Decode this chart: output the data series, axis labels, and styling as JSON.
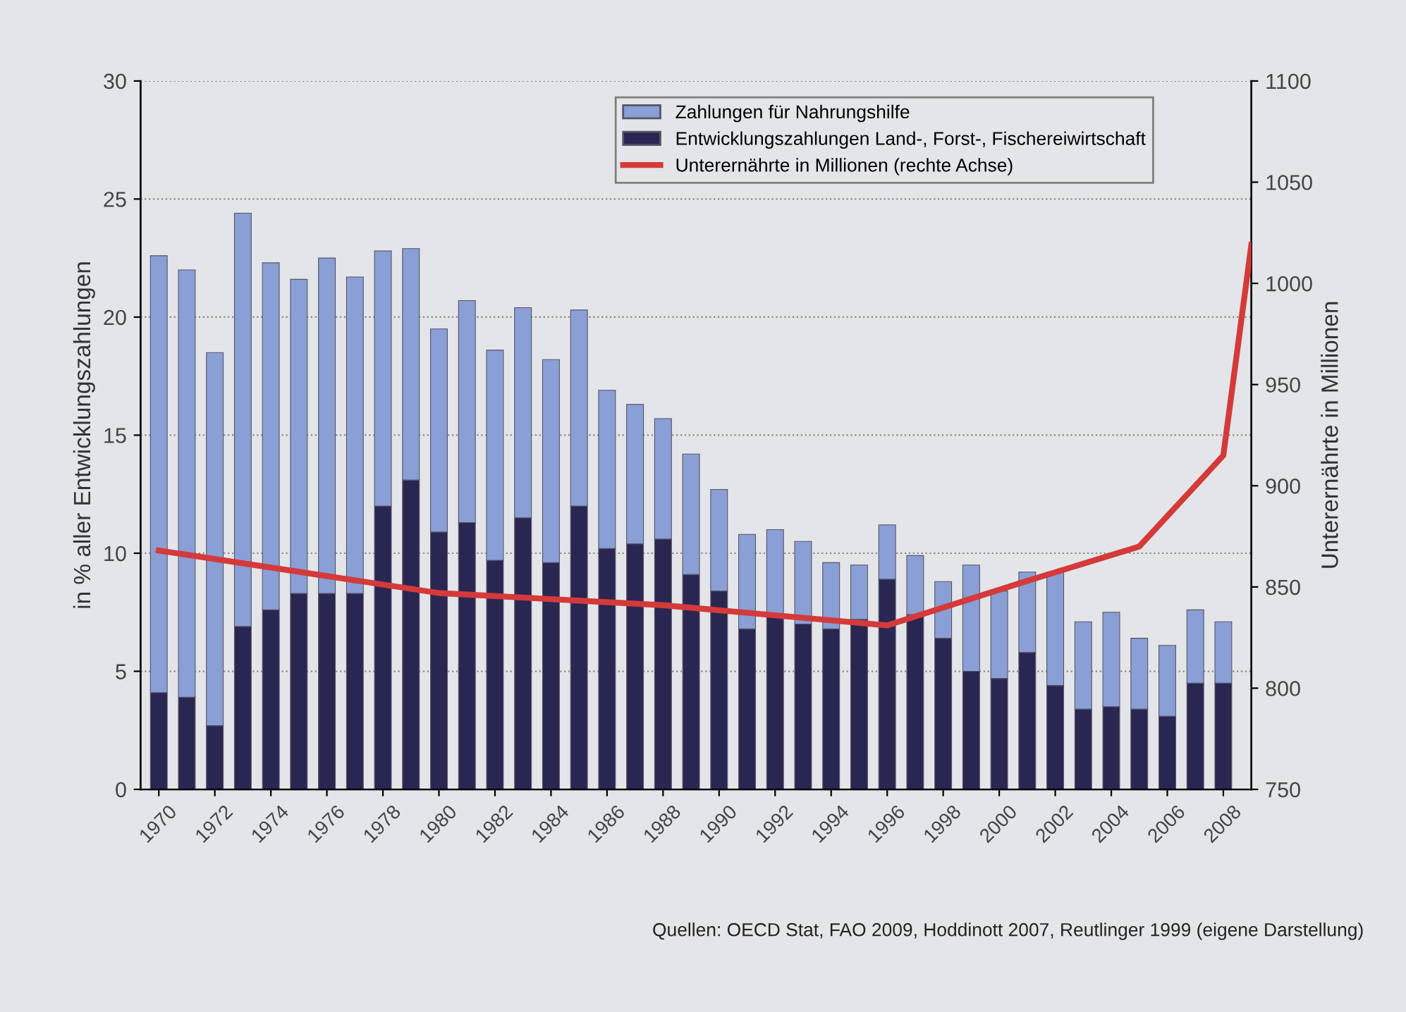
{
  "chart_data": {
    "type": "bar",
    "stacked": true,
    "x": [
      1970,
      1971,
      1972,
      1973,
      1974,
      1975,
      1976,
      1977,
      1978,
      1979,
      1980,
      1981,
      1982,
      1983,
      1984,
      1985,
      1986,
      1987,
      1988,
      1989,
      1990,
      1991,
      1992,
      1993,
      1994,
      1995,
      1996,
      1997,
      1998,
      1999,
      2000,
      2001,
      2002,
      2003,
      2004,
      2005,
      2006,
      2007,
      2008
    ],
    "ylabel": "in % aller Entwicklungszahlungen",
    "y2label": "Unterernährte in Millionen",
    "series": [
      {
        "name": "Entwicklungszahlungen Land-, Forst-, Fischereiwirtschaft",
        "color": "#2a2652",
        "values": [
          4.1,
          3.9,
          2.7,
          6.9,
          7.6,
          8.3,
          8.3,
          8.3,
          12.0,
          13.1,
          10.9,
          11.3,
          9.7,
          11.5,
          9.6,
          12.0,
          10.2,
          10.4,
          10.6,
          9.1,
          8.4,
          6.8,
          7.4,
          7.0,
          6.8,
          7.2,
          8.9,
          7.4,
          6.4,
          5.0,
          4.7,
          5.8,
          4.4,
          3.4,
          3.5,
          3.4,
          3.1,
          4.5,
          4.5
        ]
      },
      {
        "name": "Zahlungen für Nahrungshilfe",
        "color": "#8a9fd6",
        "values": [
          18.5,
          18.1,
          15.8,
          17.5,
          14.7,
          13.3,
          14.2,
          13.4,
          10.8,
          9.8,
          8.6,
          9.4,
          8.9,
          8.9,
          8.6,
          8.3,
          6.7,
          5.9,
          5.1,
          5.1,
          4.3,
          4.0,
          3.6,
          3.5,
          2.8,
          2.3,
          2.3,
          2.5,
          2.4,
          4.5,
          3.7,
          3.4,
          4.8,
          3.7,
          4.0,
          3.0,
          3.0,
          3.1,
          2.6
        ]
      },
      {
        "name": "Unterernährte in Millionen (rechte Achse)",
        "type": "line",
        "axis": "y2",
        "color": "#d43a3a",
        "x": [
          1970,
          1980,
          1988,
          1996,
          2001,
          2005,
          2008,
          2009
        ],
        "values": [
          868,
          847,
          841,
          831,
          853,
          870,
          915,
          1019
        ]
      }
    ],
    "xlim": [
      1969.35,
      2009
    ],
    "xticks": [
      1970,
      1972,
      1974,
      1976,
      1978,
      1980,
      1982,
      1984,
      1986,
      1988,
      1990,
      1992,
      1994,
      1996,
      1998,
      2000,
      2002,
      2004,
      2006,
      2008
    ],
    "ylim": [
      0,
      30
    ],
    "yticks": [
      0,
      5,
      10,
      15,
      20,
      25,
      30
    ],
    "y2lim": [
      750,
      1100
    ],
    "y2ticks": [
      750,
      800,
      850,
      900,
      950,
      1000,
      1050,
      1100
    ],
    "grid": "y",
    "legend": "top right",
    "marker": "none",
    "line_style": "solid",
    "annotations": [
      "Quellen: OECD Stat, FAO 2009, Hoddinott 2007, Reutlinger 1999 (eigene Darstellung)"
    ]
  }
}
